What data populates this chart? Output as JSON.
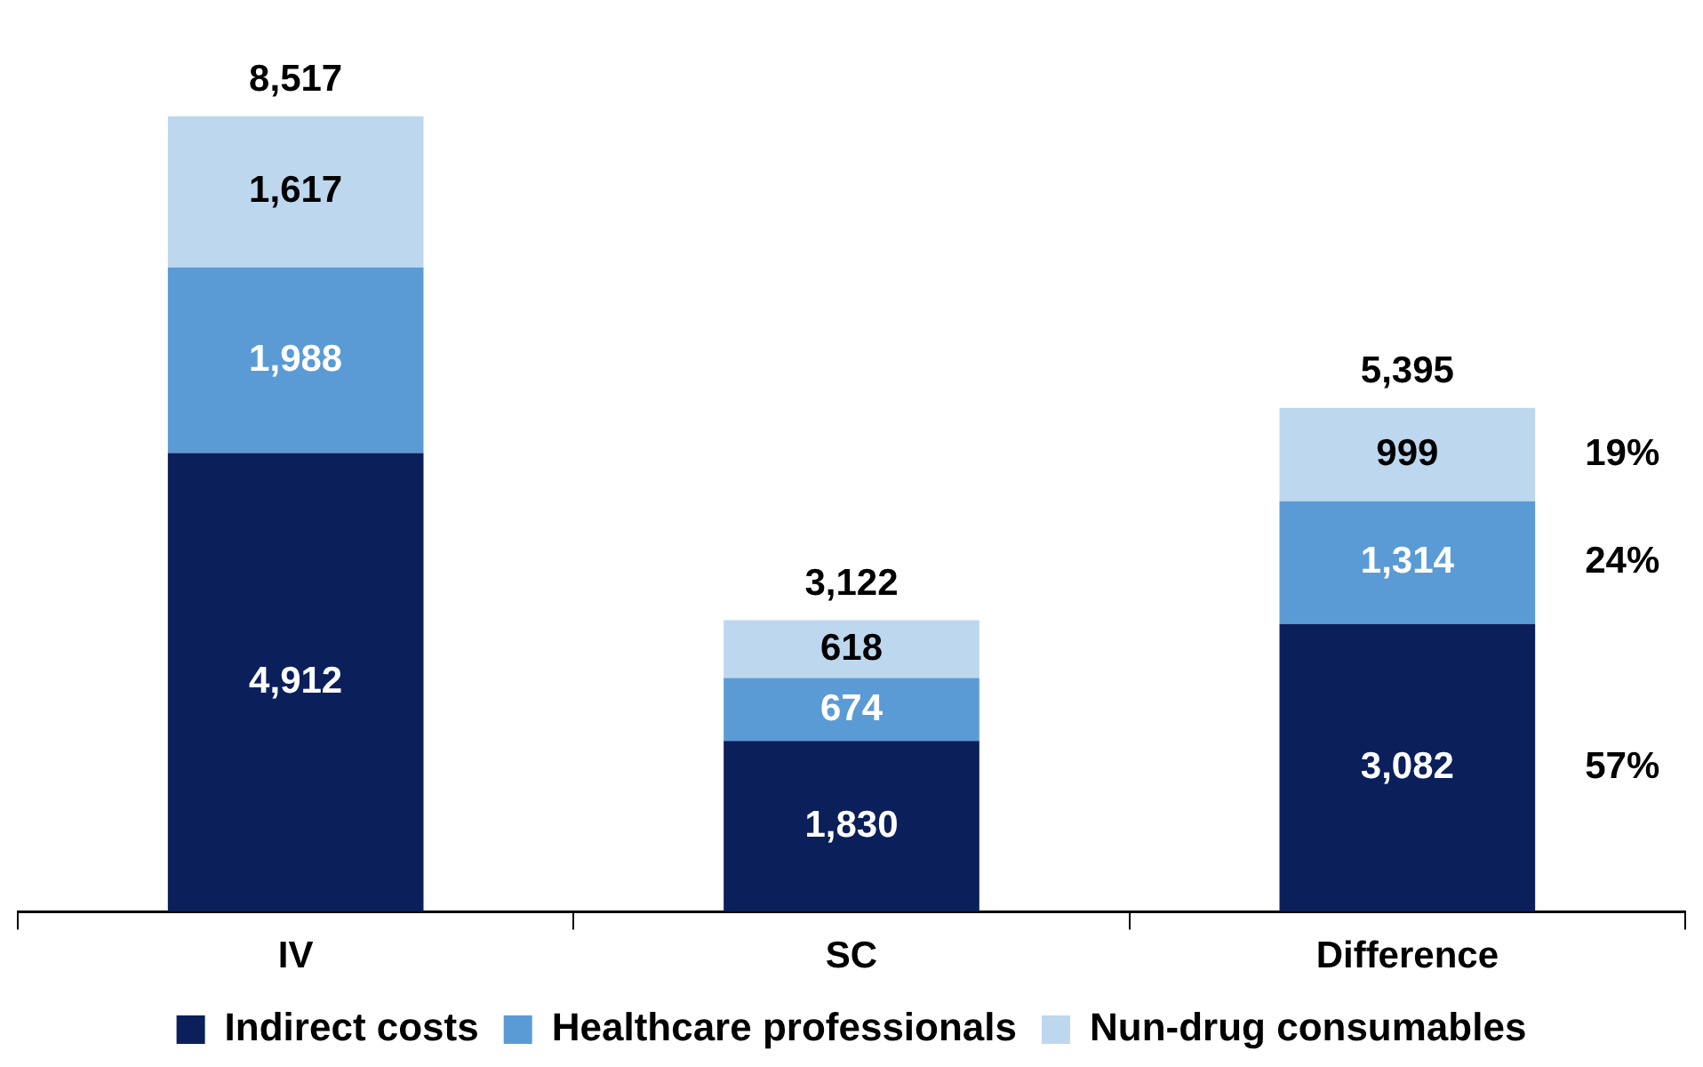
{
  "chart_data": {
    "type": "bar",
    "stacked": true,
    "categories": [
      "IV",
      "SC",
      "Difference"
    ],
    "series": [
      {
        "name": "Indirect costs",
        "color": "#0b1f5b",
        "values": [
          4912,
          1830,
          3082
        ],
        "value_labels": [
          "4,912",
          "1,830",
          "3,082"
        ]
      },
      {
        "name": "Healthcare professionals",
        "color": "#5b9bd5",
        "values": [
          1988,
          674,
          1314
        ],
        "value_labels": [
          "1,988",
          "674",
          "1,314"
        ]
      },
      {
        "name": "Nun-drug consumables",
        "color": "#bdd7ee",
        "values": [
          1617,
          618,
          999
        ],
        "value_labels": [
          "1,617",
          "618",
          "999"
        ]
      }
    ],
    "totals": [
      "8,517",
      "3,122",
      "5,395"
    ],
    "annotations": [
      "19%",
      "24%",
      "57%"
    ],
    "legend": "bottom",
    "grid": false
  }
}
